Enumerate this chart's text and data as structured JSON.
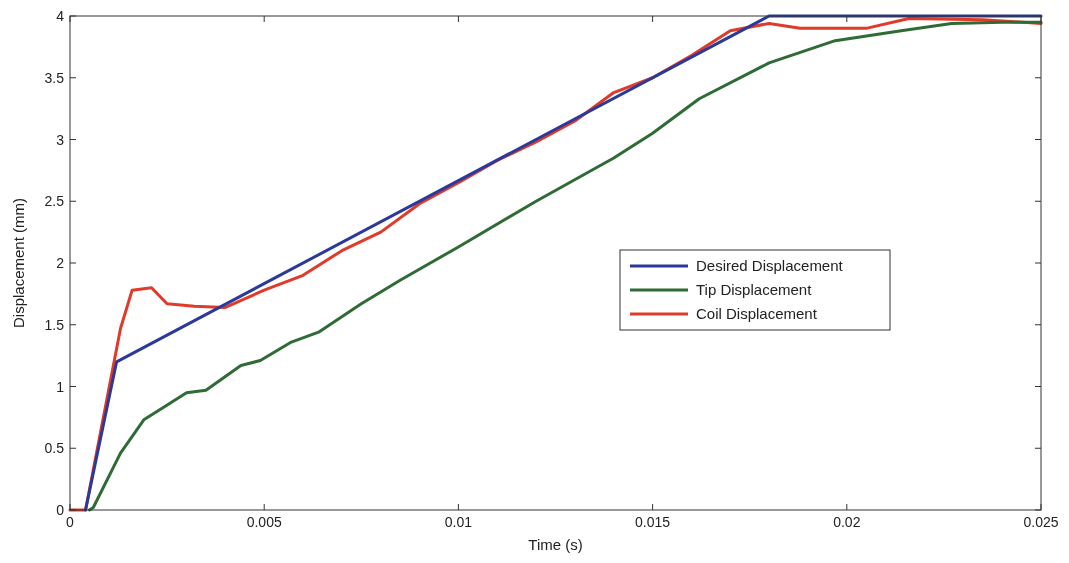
{
  "chart_data": {
    "type": "line",
    "xlabel": "Time (s)",
    "ylabel": "Displacement (mm)",
    "xlim": [
      0,
      0.025
    ],
    "xticks": [
      0,
      0.005,
      0.01,
      0.015,
      0.02,
      0.025
    ],
    "ylim": [
      0,
      4
    ],
    "yticks": [
      0,
      0.5,
      1,
      1.5,
      2,
      2.5,
      3,
      3.5,
      4
    ],
    "grid": false,
    "legend": "right",
    "line_style": "solid",
    "series": [
      {
        "name": "Desired Displacement",
        "color": "#2b3a9a",
        "x": [
          0.0004,
          0.0012,
          0.018,
          0.025
        ],
        "values": [
          0,
          1.2,
          4,
          4
        ]
      },
      {
        "name": "Tip Displacement",
        "color": "#2e6b35",
        "x": [
          0.0005,
          0.0006,
          0.0013,
          0.0019,
          0.0023,
          0.003,
          0.0035,
          0.0044,
          0.0049,
          0.0057,
          0.0064,
          0.0075,
          0.0085,
          0.01,
          0.012,
          0.014,
          0.015,
          0.0162,
          0.018,
          0.0197,
          0.0214,
          0.0227,
          0.024,
          0.025
        ],
        "values": [
          0,
          0.02,
          0.46,
          0.73,
          0.81,
          0.95,
          0.97,
          1.17,
          1.21,
          1.36,
          1.44,
          1.67,
          1.86,
          2.13,
          2.5,
          2.85,
          3.05,
          3.33,
          3.62,
          3.8,
          3.88,
          3.94,
          3.95,
          3.95
        ]
      },
      {
        "name": "Coil Displacement",
        "color": "#e03a2a",
        "x": [
          0,
          0.0004,
          0.0013,
          0.0016,
          0.0021,
          0.0025,
          0.0032,
          0.004,
          0.005,
          0.006,
          0.007,
          0.008,
          0.009,
          0.01,
          0.011,
          0.012,
          0.013,
          0.014,
          0.015,
          0.016,
          0.017,
          0.018,
          0.0188,
          0.0205,
          0.0216,
          0.0235,
          0.025
        ],
        "values": [
          0,
          0,
          1.47,
          1.78,
          1.8,
          1.67,
          1.65,
          1.64,
          1.78,
          1.9,
          2.1,
          2.25,
          2.48,
          2.65,
          2.83,
          2.98,
          3.15,
          3.38,
          3.5,
          3.68,
          3.88,
          3.94,
          3.9,
          3.9,
          3.98,
          3.97,
          3.94
        ]
      }
    ]
  }
}
